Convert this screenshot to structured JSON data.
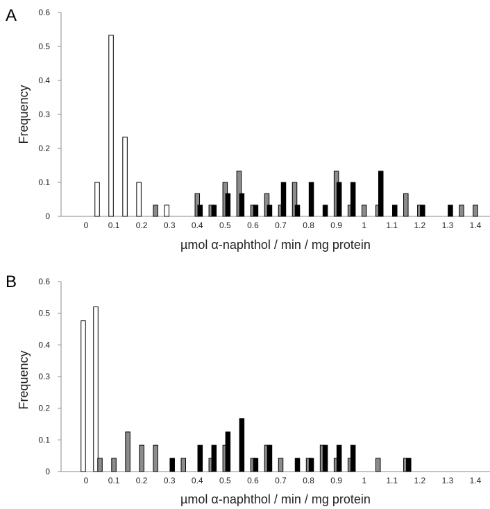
{
  "figure": {
    "panels": [
      "A",
      "B"
    ]
  },
  "colors": {
    "white_series_fill": "#ffffff",
    "gray_series_fill": "#8c8c8c",
    "black_series_fill": "#000000",
    "bar_stroke": "#000000",
    "axis": "#888888"
  },
  "chart_data": [
    {
      "panel": "A",
      "type": "bar",
      "xlabel": "µmol α-naphthol / min / mg protein",
      "ylabel": "Frequency",
      "ylim": [
        0,
        0.6
      ],
      "yticks": [
        "0",
        "0.1",
        "0.2",
        "0.3",
        "0.4",
        "0.5",
        "0.6"
      ],
      "xticks": [
        "0",
        "0.1",
        "0.2",
        "0.3",
        "0.4",
        "0.5",
        "0.6",
        "0.7",
        "0.8",
        "0.9",
        "1",
        "1.1",
        "1.2",
        "1.3",
        "1.4"
      ],
      "grid": false,
      "series": [
        {
          "style": "white",
          "points": [
            [
              0.04,
              0.1
            ],
            [
              0.09,
              0.533
            ],
            [
              0.14,
              0.233
            ],
            [
              0.19,
              0.1
            ],
            [
              0.29,
              0.033
            ]
          ]
        },
        {
          "style": "gray",
          "points": [
            [
              0.25,
              0.033
            ],
            [
              0.4,
              0.067
            ],
            [
              0.45,
              0.033
            ],
            [
              0.5,
              0.1
            ],
            [
              0.55,
              0.133
            ],
            [
              0.6,
              0.033
            ],
            [
              0.65,
              0.067
            ],
            [
              0.7,
              0.033
            ],
            [
              0.75,
              0.1
            ],
            [
              0.9,
              0.133
            ],
            [
              0.95,
              0.033
            ],
            [
              1.0,
              0.033
            ],
            [
              1.05,
              0.033
            ],
            [
              1.15,
              0.067
            ],
            [
              1.2,
              0.033
            ],
            [
              1.35,
              0.033
            ],
            [
              1.4,
              0.033
            ]
          ]
        },
        {
          "style": "black",
          "points": [
            [
              0.41,
              0.033
            ],
            [
              0.46,
              0.033
            ],
            [
              0.51,
              0.067
            ],
            [
              0.56,
              0.067
            ],
            [
              0.61,
              0.033
            ],
            [
              0.66,
              0.033
            ],
            [
              0.71,
              0.1
            ],
            [
              0.76,
              0.033
            ],
            [
              0.81,
              0.1
            ],
            [
              0.86,
              0.033
            ],
            [
              0.91,
              0.1
            ],
            [
              0.96,
              0.1
            ],
            [
              1.06,
              0.133
            ],
            [
              1.11,
              0.033
            ],
            [
              1.21,
              0.033
            ],
            [
              1.31,
              0.033
            ]
          ]
        }
      ]
    },
    {
      "panel": "B",
      "type": "bar",
      "xlabel": "µmol α-naphthol / min / mg protein",
      "ylabel": "Frequency",
      "ylim": [
        0,
        0.6
      ],
      "yticks": [
        "0",
        "0.1",
        "0.2",
        "0.3",
        "0.4",
        "0.5",
        "0.6"
      ],
      "xticks": [
        "0",
        "0.1",
        "0.2",
        "0.3",
        "0.4",
        "0.5",
        "0.6",
        "0.7",
        "0.8",
        "0.9",
        "1",
        "1.1",
        "1.2",
        "1.3",
        "1.4"
      ],
      "grid": false,
      "series": [
        {
          "style": "white",
          "points": [
            [
              -0.01,
              0.476
            ],
            [
              0.035,
              0.52
            ]
          ]
        },
        {
          "style": "gray",
          "points": [
            [
              0.05,
              0.042
            ],
            [
              0.1,
              0.042
            ],
            [
              0.15,
              0.125
            ],
            [
              0.2,
              0.083
            ],
            [
              0.25,
              0.083
            ],
            [
              0.35,
              0.042
            ],
            [
              0.45,
              0.042
            ],
            [
              0.5,
              0.083
            ],
            [
              0.6,
              0.042
            ],
            [
              0.65,
              0.083
            ],
            [
              0.7,
              0.042
            ],
            [
              0.8,
              0.042
            ],
            [
              0.85,
              0.083
            ],
            [
              0.9,
              0.042
            ],
            [
              0.95,
              0.042
            ],
            [
              1.05,
              0.042
            ],
            [
              1.15,
              0.042
            ]
          ]
        },
        {
          "style": "black",
          "points": [
            [
              0.31,
              0.042
            ],
            [
              0.41,
              0.083
            ],
            [
              0.46,
              0.083
            ],
            [
              0.51,
              0.125
            ],
            [
              0.56,
              0.167
            ],
            [
              0.61,
              0.042
            ],
            [
              0.66,
              0.083
            ],
            [
              0.76,
              0.042
            ],
            [
              0.81,
              0.042
            ],
            [
              0.86,
              0.083
            ],
            [
              0.91,
              0.083
            ],
            [
              0.96,
              0.083
            ],
            [
              1.16,
              0.042
            ]
          ]
        }
      ]
    }
  ]
}
